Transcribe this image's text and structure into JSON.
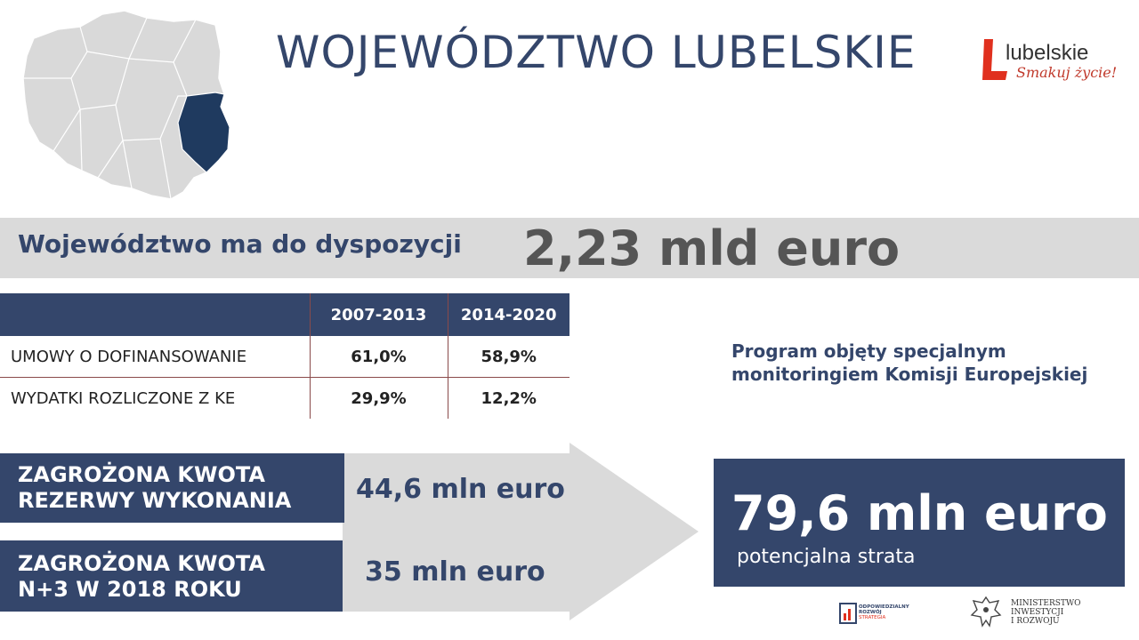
{
  "header": {
    "title": "WOJEWÓDZTWO LUBELSKIE",
    "logo_name": "lubelskie",
    "logo_slogan": "Smakuj życie!"
  },
  "budget": {
    "label": "Województwo ma do dyspozycji",
    "value": "2,23 mld euro"
  },
  "table": {
    "columns": [
      "2007-2013",
      "2014-2020"
    ],
    "rows": [
      {
        "label": "UMOWY O DOFINANSOWANIE",
        "values": [
          "61,0%",
          "58,9%"
        ]
      },
      {
        "label": "WYDATKI ROZLICZONE Z KE",
        "values": [
          "29,9%",
          "12,2%"
        ]
      }
    ]
  },
  "note": "Program objęty specjalnym monitoringiem Komisji Europejskiej",
  "threats": [
    {
      "line1": "ZAGROŻONA KWOTA",
      "line2": "REZERWY WYKONANIA",
      "amount": "44,6 mln euro"
    },
    {
      "line1": "ZAGROŻONA KWOTA",
      "line2": "N+3 W 2018 ROKU",
      "amount": "35 mln euro"
    }
  ],
  "total": {
    "value": "79,6 mln euro",
    "caption": "potencjalna strata"
  },
  "footer": {
    "logo1_line1": "ODPOWIEDZIALNY",
    "logo1_line2": "ROZWÓJ",
    "logo1_line3": "STRATEGIA",
    "ministry_line1": "MINISTERSTWO",
    "ministry_line2": "INWESTYCJI",
    "ministry_line3": "I ROZWOJU"
  },
  "colors": {
    "navy": "#34466b",
    "highlight_region": "#1f3a5f",
    "map_fill": "#d9d9d9",
    "band_gray": "#dadada",
    "logo_red": "#e0301e"
  }
}
